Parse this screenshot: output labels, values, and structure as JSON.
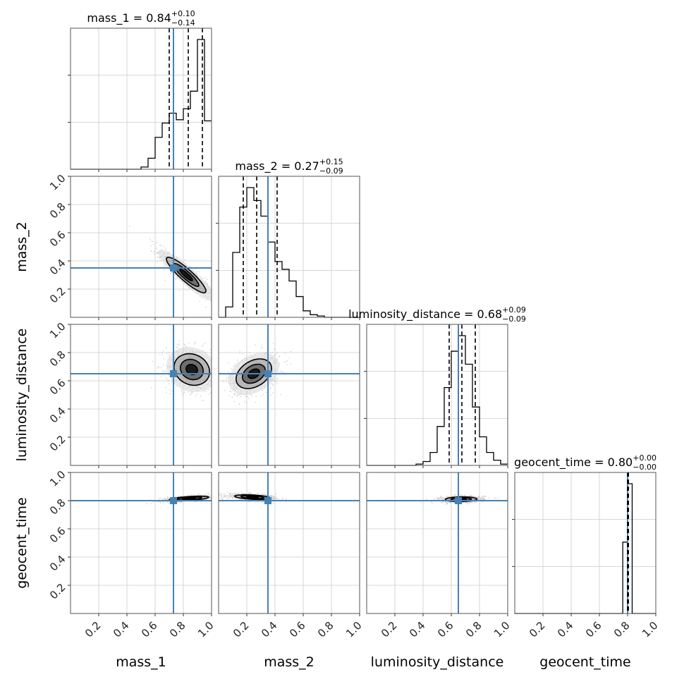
{
  "chart_data": {
    "type": "corner",
    "parameters": [
      "mass_1",
      "mass_2",
      "luminosity_distance",
      "geocent_time"
    ],
    "axis_labels": [
      "mass_1",
      "mass_2",
      "luminosity_distance",
      "geocent_time"
    ],
    "range": [
      0,
      1
    ],
    "tick_values": [
      0.2,
      0.4,
      0.6,
      0.8,
      1.0
    ],
    "tick_labels": [
      "0.2",
      "0.4",
      "0.6",
      "0.8",
      "1.0"
    ],
    "grid": true,
    "injection_color": "#4682b4",
    "truths": [
      0.73,
      0.35,
      0.65,
      0.8
    ],
    "summaries": [
      {
        "name": "mass_1",
        "value": "0.84",
        "plus": "+0.10",
        "minus": "−0.14",
        "quantiles": [
          0.7,
          0.835,
          0.935
        ]
      },
      {
        "name": "mass_2",
        "value": "0.27",
        "plus": "+0.15",
        "minus": "−0.09",
        "quantiles": [
          0.175,
          0.27,
          0.415
        ]
      },
      {
        "name": "luminosity_distance",
        "value": "0.68",
        "plus": "+0.09",
        "minus": "−0.09",
        "quantiles": [
          0.585,
          0.675,
          0.77
        ]
      },
      {
        "name": "geocent_time",
        "value": "0.80",
        "plus": "+0.00",
        "minus": "−0.00",
        "quantiles": [
          0.8,
          0.803,
          0.806
        ]
      }
    ],
    "histograms": [
      {
        "bin_width": 0.05,
        "bin_start": 0,
        "counts": [
          0,
          0,
          0,
          0,
          0,
          0,
          0,
          0,
          0,
          0,
          0.02,
          0.1,
          0.29,
          0.42,
          0.51,
          0.45,
          0.55,
          0.71,
          1.18,
          0.44
        ]
      },
      {
        "bin_width": 0.05,
        "bin_start": 0,
        "counts": [
          0,
          0.08,
          0.5,
          0.85,
          1.0,
          0.9,
          0.78,
          0.58,
          0.43,
          0.37,
          0.28,
          0.16,
          0.05,
          0.02,
          0.01,
          0,
          0,
          0,
          0,
          0
        ]
      },
      {
        "bin_width": 0.05,
        "bin_start": 0,
        "counts": [
          0,
          0,
          0,
          0,
          0,
          0,
          0,
          0.01,
          0.03,
          0.1,
          0.3,
          0.6,
          0.88,
          1.0,
          0.78,
          0.45,
          0.22,
          0.1,
          0.04,
          0.01
        ]
      },
      {
        "bin_width": 0.0333,
        "bin_start": 0,
        "counts": [
          0,
          0,
          0,
          0,
          0,
          0,
          0,
          0,
          0,
          0,
          0,
          0,
          0,
          0,
          0,
          0,
          0,
          0,
          0,
          0,
          0,
          0,
          0,
          0.55,
          1.0,
          0,
          0,
          0,
          0,
          0
        ]
      }
    ],
    "posteriors_2d": [
      {
        "x": "mass_1",
        "y": "mass_2",
        "mean": [
          0.82,
          0.3
        ],
        "std": [
          0.1,
          0.09
        ],
        "rho": -0.9
      },
      {
        "x": "mass_1",
        "y": "luminosity_distance",
        "mean": [
          0.86,
          0.68
        ],
        "std": [
          0.09,
          0.08
        ],
        "rho": -0.15
      },
      {
        "x": "mass_2",
        "y": "luminosity_distance",
        "mean": [
          0.25,
          0.65
        ],
        "std": [
          0.09,
          0.075
        ],
        "rho": 0.35
      },
      {
        "x": "mass_1",
        "y": "geocent_time",
        "mean": [
          0.84,
          0.815
        ],
        "std": [
          0.1,
          0.012
        ],
        "rho": 0.55
      },
      {
        "x": "mass_2",
        "y": "geocent_time",
        "mean": [
          0.24,
          0.825
        ],
        "std": [
          0.09,
          0.012
        ],
        "rho": -0.4
      },
      {
        "x": "luminosity_distance",
        "y": "geocent_time",
        "mean": [
          0.67,
          0.81
        ],
        "std": [
          0.08,
          0.012
        ],
        "rho": 0.1
      }
    ]
  }
}
